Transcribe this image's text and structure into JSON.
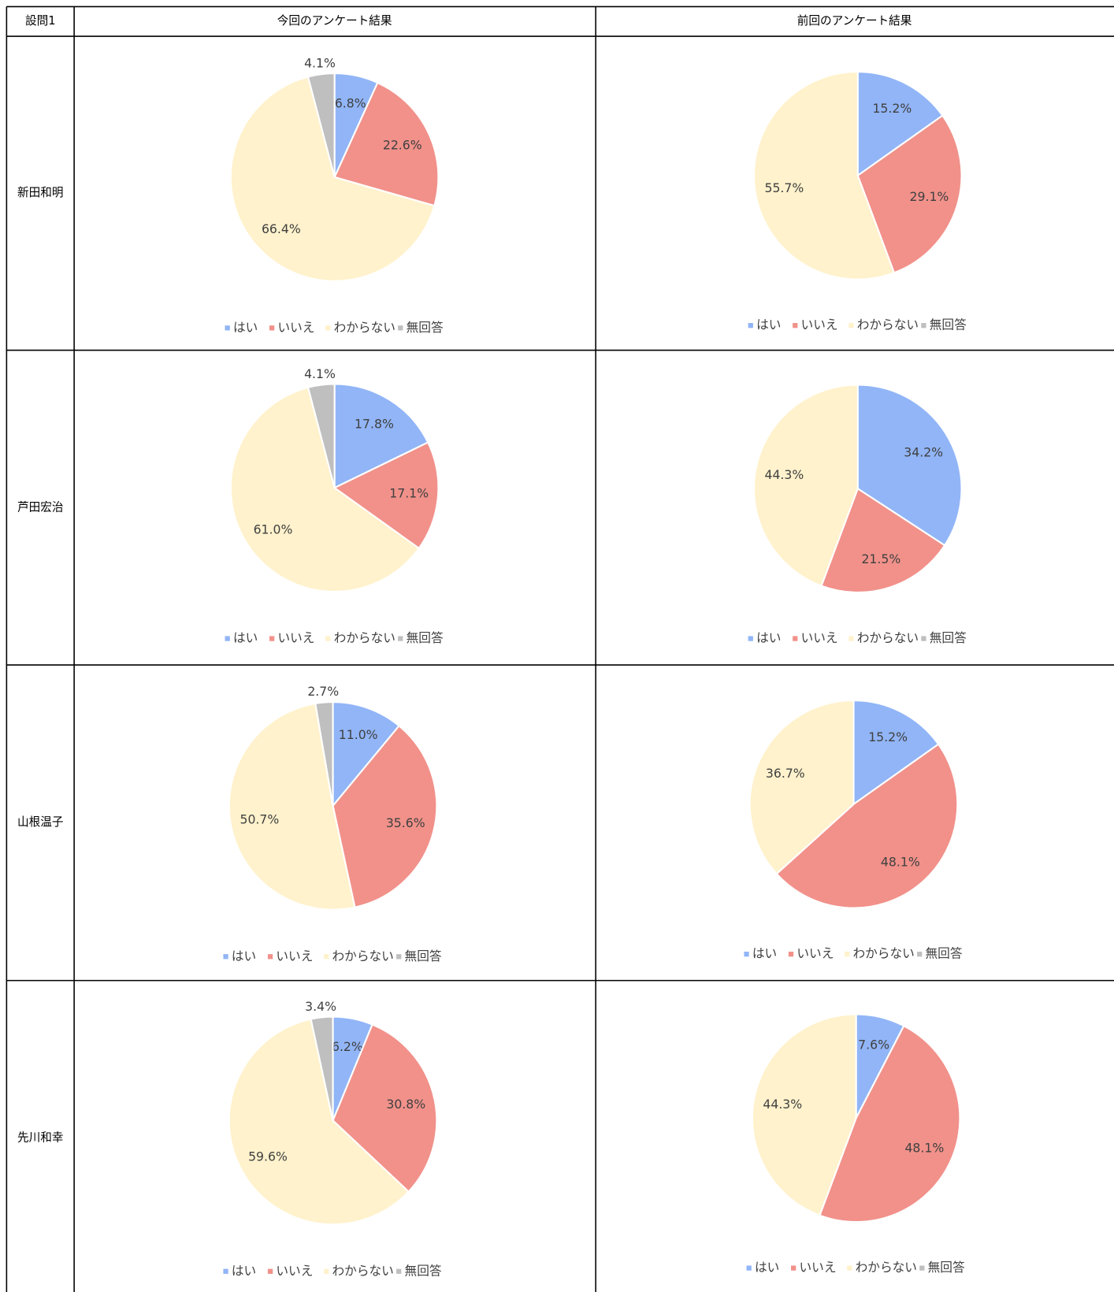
{
  "table": {
    "header": [
      "設問1",
      "今回のアンケート結果",
      "前回のアンケート結果"
    ],
    "rows": [
      "新田和明",
      "芦田宏治",
      "山根温子",
      "先川和幸"
    ]
  },
  "chart_data": [
    {
      "type": "pie",
      "categories": [
        "はい",
        "いいえ",
        "わからない",
        "無回答"
      ],
      "colors": [
        "#91b5f7",
        "#f1918a",
        "#fff2cc",
        "#bfbfbf"
      ],
      "values": [
        6.8,
        22.6,
        66.4,
        4.1
      ],
      "value_labels": [
        "6.8%",
        "22.6%",
        "66.4%",
        "4.1%"
      ]
    },
    {
      "type": "pie",
      "categories": [
        "はい",
        "いいえ",
        "わからない",
        "無回答"
      ],
      "colors": [
        "#91b5f7",
        "#f1918a",
        "#fff2cc",
        "#bfbfbf"
      ],
      "values": [
        15.2,
        29.1,
        55.7,
        null
      ],
      "value_labels": [
        "15.2%",
        "29.1%",
        "55.7%",
        null
      ]
    },
    {
      "type": "pie",
      "categories": [
        "はい",
        "いいえ",
        "わからない",
        "無回答"
      ],
      "colors": [
        "#91b5f7",
        "#f1918a",
        "#fff2cc",
        "#bfbfbf"
      ],
      "values": [
        17.8,
        17.1,
        61.0,
        4.1
      ],
      "value_labels": [
        "17.8%",
        "17.1%",
        "61.0%",
        "4.1%"
      ]
    },
    {
      "type": "pie",
      "categories": [
        "はい",
        "いいえ",
        "わからない",
        "無回答"
      ],
      "colors": [
        "#91b5f7",
        "#f1918a",
        "#fff2cc",
        "#bfbfbf"
      ],
      "values": [
        34.2,
        21.5,
        44.3,
        null
      ],
      "value_labels": [
        "34.2%",
        "21.5%",
        "44.3%",
        null
      ]
    },
    {
      "type": "pie",
      "categories": [
        "はい",
        "いいえ",
        "わからない",
        "無回答"
      ],
      "colors": [
        "#91b5f7",
        "#f1918a",
        "#fff2cc",
        "#bfbfbf"
      ],
      "values": [
        11.0,
        35.6,
        50.7,
        2.7
      ],
      "value_labels": [
        "11.0%",
        "35.6%",
        "50.7%",
        "2.7%"
      ]
    },
    {
      "type": "pie",
      "categories": [
        "はい",
        "いいえ",
        "わからない",
        "無回答"
      ],
      "colors": [
        "#91b5f7",
        "#f1918a",
        "#fff2cc",
        "#bfbfbf"
      ],
      "values": [
        15.2,
        48.1,
        36.7,
        null
      ],
      "value_labels": [
        "15.2%",
        "48.1%",
        "36.7%",
        null
      ]
    },
    {
      "type": "pie",
      "categories": [
        "はい",
        "いいえ",
        "わからない",
        "無回答"
      ],
      "colors": [
        "#91b5f7",
        "#f1918a",
        "#fff2cc",
        "#bfbfbf"
      ],
      "values": [
        6.2,
        30.8,
        59.6,
        3.4
      ],
      "value_labels": [
        "6.2%",
        "30.8%",
        "59.6%",
        "3.4%"
      ]
    },
    {
      "type": "pie",
      "categories": [
        "はい",
        "いいえ",
        "わからない",
        "無回答"
      ],
      "colors": [
        "#91b5f7",
        "#f1918a",
        "#fff2cc",
        "#bfbfbf"
      ],
      "values": [
        7.6,
        48.1,
        44.3,
        null
      ],
      "value_labels": [
        "7.6%",
        "48.1%",
        "44.3%",
        null
      ]
    }
  ]
}
